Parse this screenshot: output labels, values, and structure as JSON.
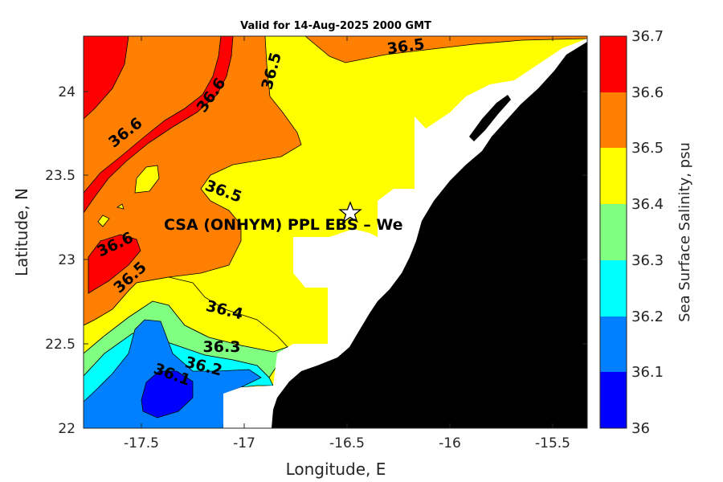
{
  "title": "Valid for 14-Aug-2025 2000 GMT",
  "x_axis": {
    "label": "Longitude, E",
    "ticks": [
      "-17.5",
      "-17",
      "-16.5",
      "-16",
      "-15.5"
    ]
  },
  "y_axis": {
    "label": "Latitude, N",
    "ticks": [
      "24",
      "23.5",
      "23",
      "22.5",
      "22"
    ]
  },
  "colorbar": {
    "label": "Sea Surface Salinity, psu",
    "ticks": [
      "36.7",
      "36.6",
      "36.5",
      "36.4",
      "36.3",
      "36.2",
      "36.1",
      "36"
    ],
    "colors": [
      "#ff0000",
      "#ff8000",
      "#ffff00",
      "#80ff80",
      "#00ffff",
      "#0080ff",
      "#0000ff"
    ]
  },
  "site": {
    "label": "CSA (ONHYM) PPL EBS  – We",
    "marker": "star-icon"
  },
  "contour_labels": [
    "36.6",
    "36.6",
    "36.5",
    "36.5",
    "36.5",
    "36.6",
    "36.5",
    "36.4",
    "36.3",
    "36.2",
    "36.1"
  ],
  "land_color": "#000000",
  "nodata_color": "#ffffff"
}
